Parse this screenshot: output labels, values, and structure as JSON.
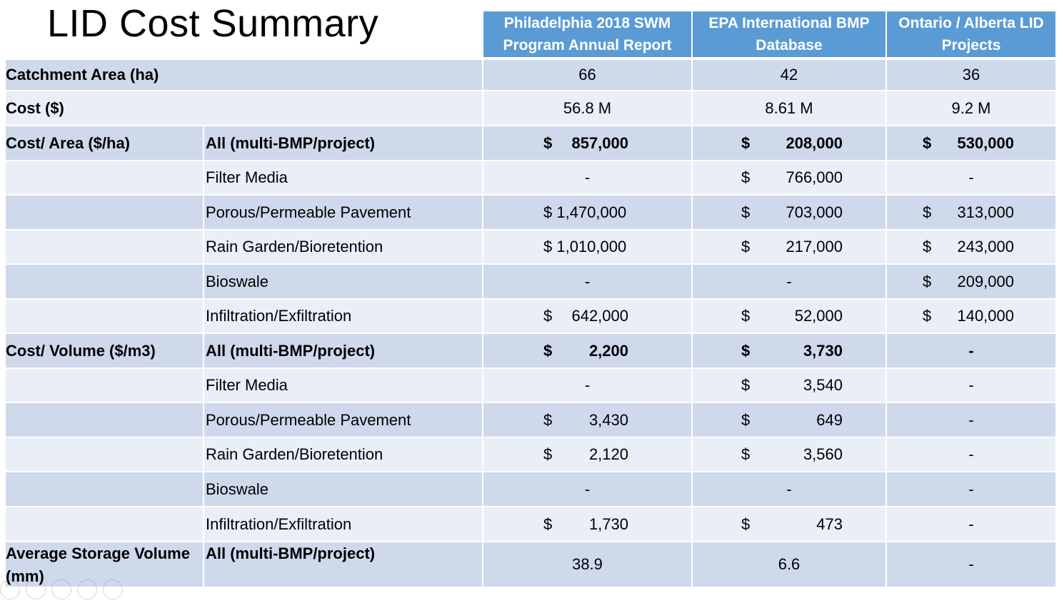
{
  "title": "LID Cost Summary",
  "columns": [
    {
      "header": "Philadelphia 2018 SWM Program Annual Report"
    },
    {
      "header": "EPA International BMP Database"
    },
    {
      "header": "Ontario / Alberta LID Projects"
    }
  ],
  "rows": [
    {
      "label": "Catchment Area (ha)",
      "sub": "",
      "bold": true,
      "values": [
        "66",
        "42",
        "36"
      ]
    },
    {
      "label": "Cost ($)",
      "sub": "",
      "bold": true,
      "values": [
        "56.8 M",
        "8.61 M",
        "9.2 M"
      ]
    },
    {
      "label": "Cost/ Area ($/ha)",
      "sub": "All (multi-BMP/project)",
      "bold": true,
      "values": [
        [
          "$",
          "857,000"
        ],
        [
          "$",
          "208,000"
        ],
        [
          "$",
          "530,000"
        ]
      ]
    },
    {
      "label": "",
      "sub": "Filter Media",
      "bold": false,
      "values": [
        "-",
        [
          "$",
          "766,000"
        ],
        "-"
      ]
    },
    {
      "label": "",
      "sub": "Porous/Permeable Pavement",
      "bold": false,
      "values": [
        "$ 1,470,000",
        [
          "$",
          "703,000"
        ],
        [
          "$",
          "313,000"
        ]
      ]
    },
    {
      "label": "",
      "sub": "Rain Garden/Bioretention",
      "bold": false,
      "values": [
        "$ 1,010,000",
        [
          "$",
          "217,000"
        ],
        [
          "$",
          "243,000"
        ]
      ]
    },
    {
      "label": "",
      "sub": "Bioswale",
      "bold": false,
      "values": [
        "-",
        "-",
        [
          "$",
          "209,000"
        ]
      ]
    },
    {
      "label": "",
      "sub": "Infiltration/Exfiltration",
      "bold": false,
      "values": [
        [
          "$",
          "642,000"
        ],
        [
          "$",
          "52,000"
        ],
        [
          "$",
          "140,000"
        ]
      ]
    },
    {
      "label": "Cost/ Volume ($/m3)",
      "sub": "All (multi-BMP/project)",
      "bold": true,
      "values": [
        [
          "$",
          "2,200"
        ],
        [
          "$",
          "3,730"
        ],
        "-"
      ]
    },
    {
      "label": "",
      "sub": "Filter Media",
      "bold": false,
      "values": [
        "-",
        [
          "$",
          "3,540"
        ],
        "-"
      ]
    },
    {
      "label": "",
      "sub": "Porous/Permeable Pavement",
      "bold": false,
      "values": [
        [
          "$",
          "3,430"
        ],
        [
          "$",
          "649"
        ],
        "-"
      ]
    },
    {
      "label": "",
      "sub": "Rain Garden/Bioretention",
      "bold": false,
      "values": [
        [
          "$",
          "2,120"
        ],
        [
          "$",
          "3,560"
        ],
        "-"
      ]
    },
    {
      "label": "",
      "sub": "Bioswale",
      "bold": false,
      "values": [
        "-",
        "-",
        "-"
      ]
    },
    {
      "label": "",
      "sub": "Infiltration/Exfiltration",
      "bold": false,
      "values": [
        [
          "$",
          "1,730"
        ],
        [
          "$",
          "473"
        ],
        "-"
      ]
    },
    {
      "label": "Average Storage Volume (mm)",
      "sub": "All (multi-BMP/project)",
      "bold": true,
      "values": [
        "38.9",
        "6.6",
        "-"
      ]
    }
  ]
}
